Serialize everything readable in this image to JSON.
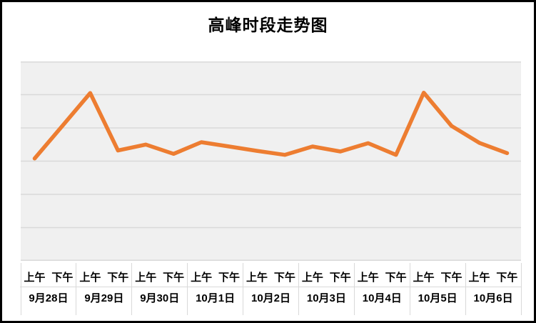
{
  "title": "高峰时段走势图",
  "colors": {
    "line": "#ED7D31",
    "plot_bg": "#F0F0F0",
    "gridline": "#D9D9D9",
    "axis_divider": "#D9D9D9",
    "text": "#000000",
    "border": "#000000",
    "page_bg": "#FFFFFF"
  },
  "chart_data": {
    "type": "line",
    "title": "高峰时段走势图",
    "legend": "none",
    "grid": "horizontal-only",
    "y_axis_labels_visible": false,
    "ylim": [
      0,
      6
    ],
    "y_gridline_spacing": 1,
    "y_units": "gridline units (no y-axis tick labels shown in chart)",
    "x_level1": [
      "上午",
      "下午",
      "上午",
      "下午",
      "上午",
      "下午",
      "上午",
      "下午",
      "上午",
      "下午",
      "上午",
      "下午",
      "上午",
      "下午",
      "上午",
      "下午",
      "上午",
      "下午"
    ],
    "x_level2": [
      "9月28日",
      "9月29日",
      "9月30日",
      "10月1日",
      "10月2日",
      "10月3日",
      "10月4日",
      "10月5日",
      "10月6日"
    ],
    "series": [
      {
        "name": "高峰时段",
        "color": "#ED7D31",
        "values": [
          3.08,
          4.06,
          5.05,
          3.32,
          3.5,
          3.22,
          3.57,
          3.44,
          3.31,
          3.19,
          3.44,
          3.29,
          3.54,
          3.19,
          5.06,
          4.06,
          3.55,
          3.24
        ]
      }
    ]
  }
}
